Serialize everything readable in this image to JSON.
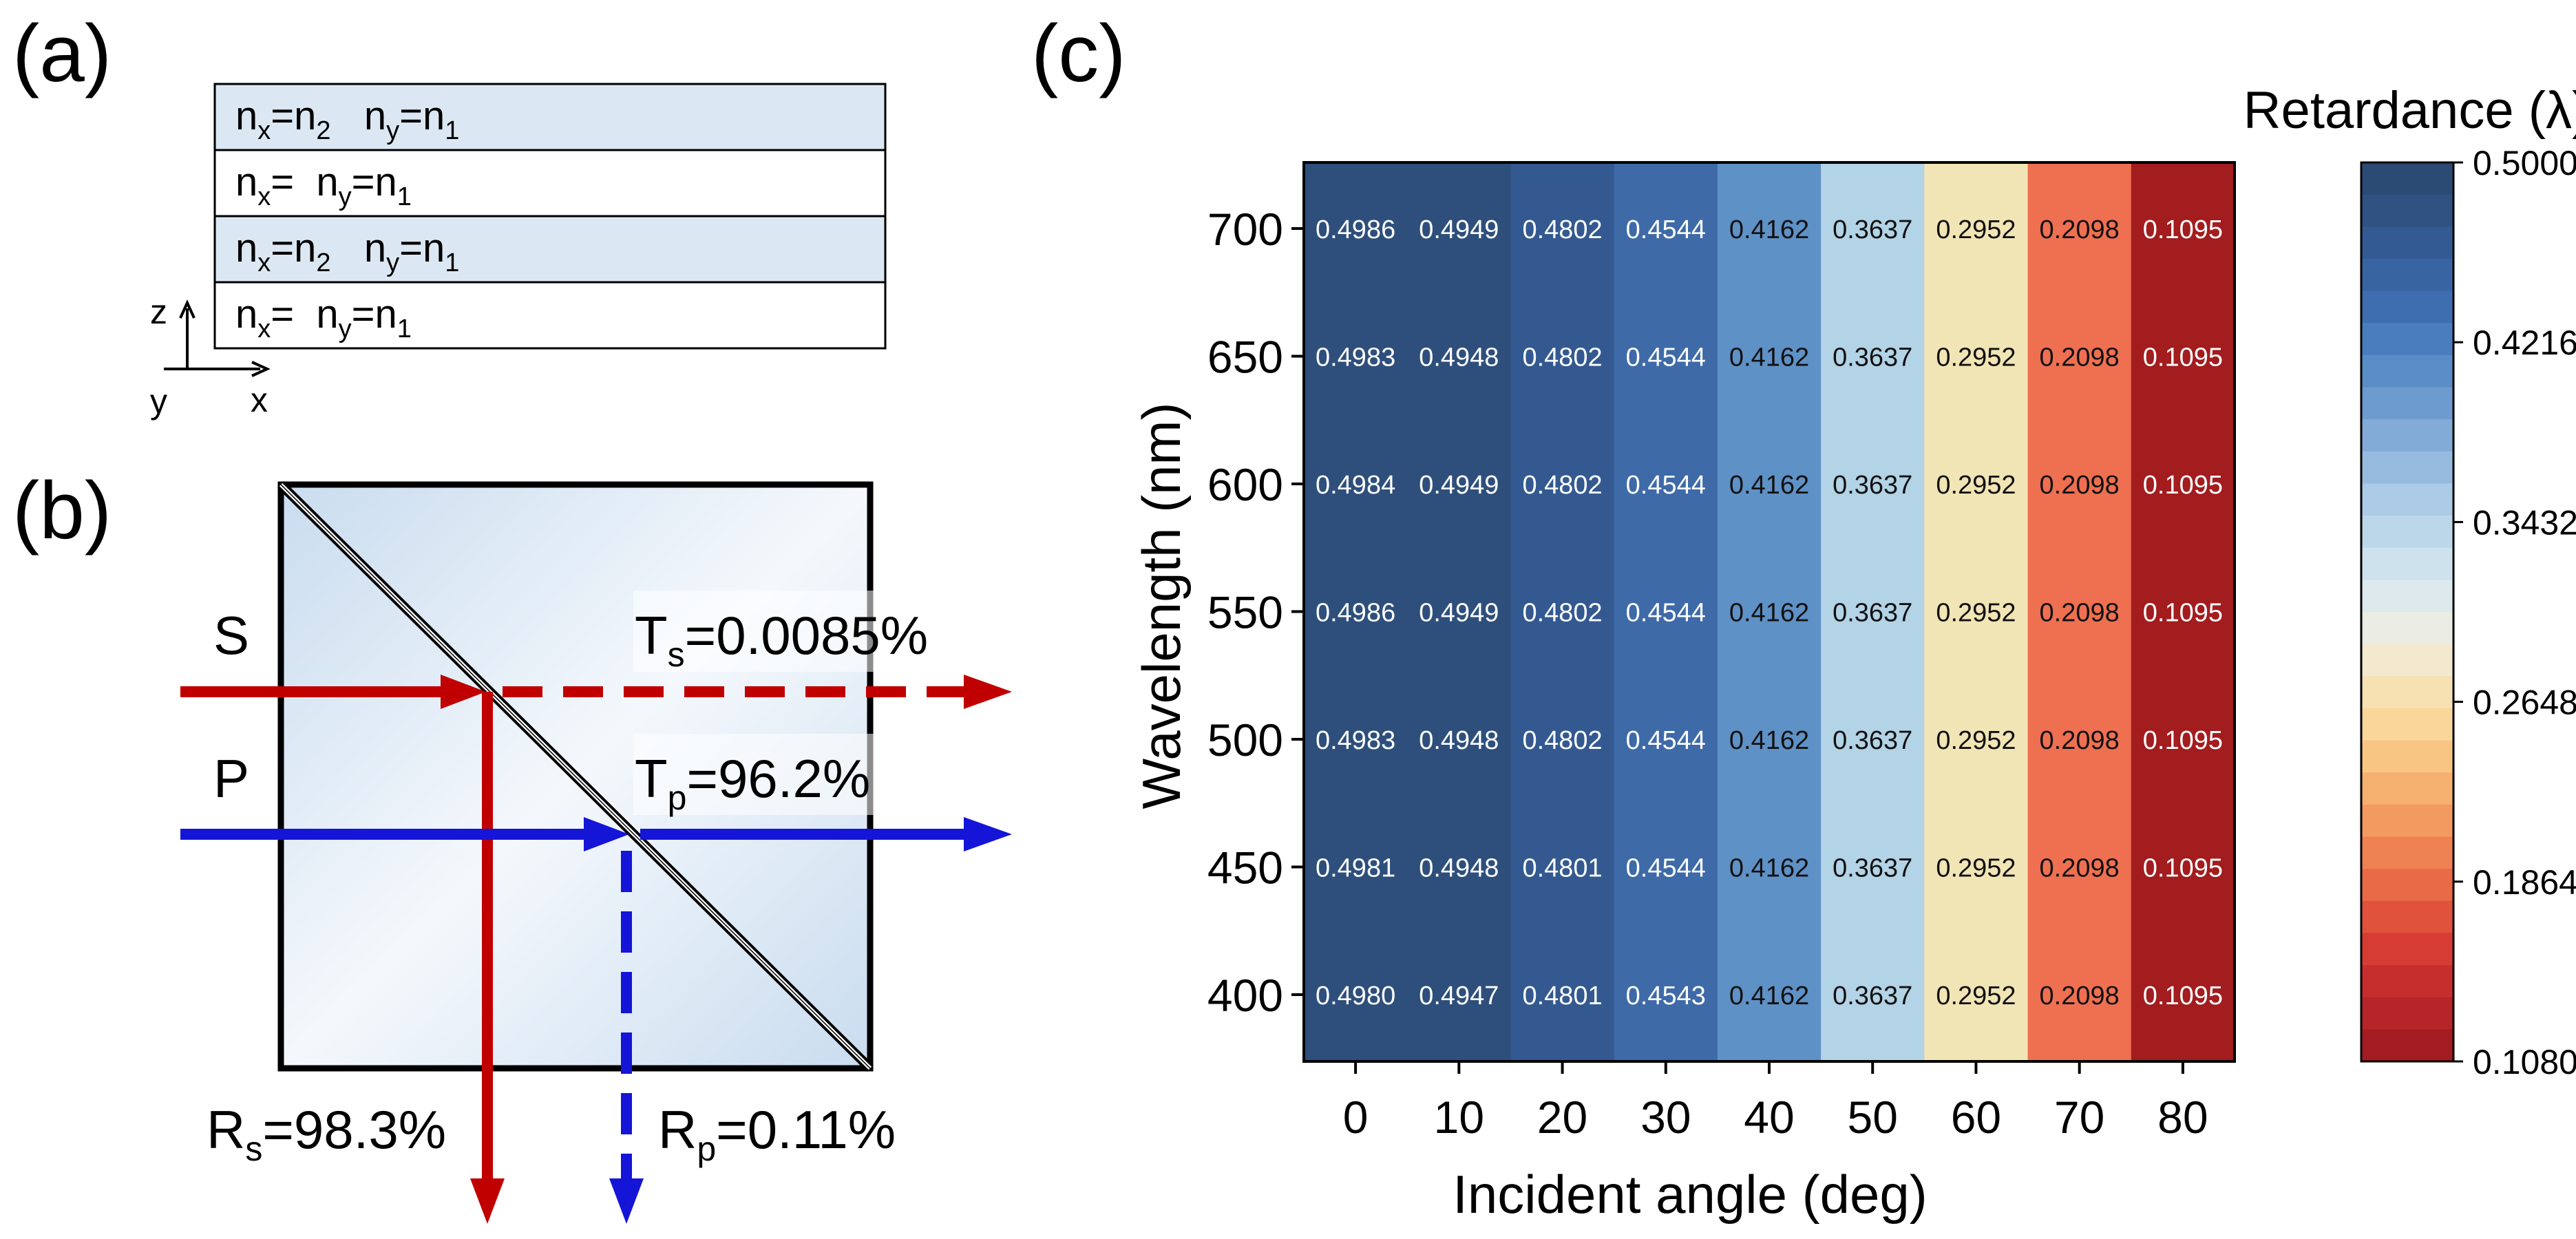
{
  "colors": {
    "s_beam": "#c00000",
    "p_beam": "#1515d8",
    "layer_fill": "#dbe8f4",
    "heat_dark_text": "#111111",
    "heat_light_text": "#ffffff"
  },
  "panel_a": {
    "label": "(a)",
    "layers": [
      {
        "text": [
          "n",
          "x",
          "=n",
          "2",
          "   n",
          "y",
          "=n",
          "1"
        ],
        "shaded": true
      },
      {
        "text": [
          "n",
          "x",
          "=  n",
          "y",
          "=n",
          "1"
        ],
        "shaded": false
      },
      {
        "text": [
          "n",
          "x",
          "=n",
          "2",
          "   n",
          "y",
          "=n",
          "1"
        ],
        "shaded": true
      },
      {
        "text": [
          "n",
          "x",
          "=  n",
          "y",
          "=n",
          "1"
        ],
        "shaded": false
      }
    ],
    "axes": {
      "z": "z",
      "y": "y",
      "x": "x"
    }
  },
  "panel_b": {
    "label": "(b)",
    "s_label": "S",
    "p_label": "P",
    "ts": {
      "main": "T",
      "sub": "s",
      "value": "=0.0085%"
    },
    "tp": {
      "main": "T",
      "sub": "p",
      "value": "=96.2%"
    },
    "rs": {
      "main": "R",
      "sub": "s",
      "value": "=98.3%"
    },
    "rp": {
      "main": "R",
      "sub": "p",
      "value": "=0.11%"
    }
  },
  "panel_c": {
    "label": "(c)",
    "chart_data": {
      "type": "heatmap",
      "xlabel": "Incident angle (deg)",
      "ylabel": "Wavelength (nm)",
      "x": [
        0,
        10,
        20,
        30,
        40,
        50,
        60,
        70,
        80
      ],
      "x_ticks": [
        "0",
        "10",
        "20",
        "30",
        "40",
        "50",
        "60",
        "70",
        "80"
      ],
      "y": [
        700,
        650,
        600,
        550,
        500,
        450,
        400
      ],
      "y_ticks": [
        "700",
        "650",
        "600",
        "550",
        "500",
        "450",
        "400"
      ],
      "values": [
        [
          "0.4986",
          "0.4949",
          "0.4802",
          "0.4544",
          "0.4162",
          "0.3637",
          "0.2952",
          "0.2098",
          "0.1095"
        ],
        [
          "0.4983",
          "0.4948",
          "0.4802",
          "0.4544",
          "0.4162",
          "0.3637",
          "0.2952",
          "0.2098",
          "0.1095"
        ],
        [
          "0.4984",
          "0.4949",
          "0.4802",
          "0.4544",
          "0.4162",
          "0.3637",
          "0.2952",
          "0.2098",
          "0.1095"
        ],
        [
          "0.4986",
          "0.4949",
          "0.4802",
          "0.4544",
          "0.4162",
          "0.3637",
          "0.2952",
          "0.2098",
          "0.1095"
        ],
        [
          "0.4983",
          "0.4948",
          "0.4802",
          "0.4544",
          "0.4162",
          "0.3637",
          "0.2952",
          "0.2098",
          "0.1095"
        ],
        [
          "0.4981",
          "0.4948",
          "0.4801",
          "0.4544",
          "0.4162",
          "0.3637",
          "0.2952",
          "0.2098",
          "0.1095"
        ],
        [
          "0.4980",
          "0.4947",
          "0.4801",
          "0.4543",
          "0.4162",
          "0.3637",
          "0.2952",
          "0.2098",
          "0.1095"
        ]
      ],
      "column_colors": [
        "#2e4f7c",
        "#2e4f7c",
        "#335990",
        "#3e6aa8",
        "#5e91c6",
        "#b3d3e6",
        "#f2e5b5",
        "#ef7051",
        "#a31c1e"
      ],
      "dark_text_columns": [
        4,
        5,
        6,
        7
      ],
      "colorbar": {
        "title": "Retardance (λ)",
        "min": 0.108,
        "max": 0.5,
        "ticks": [
          "0.5000",
          "0.4216",
          "0.3432",
          "0.2648",
          "0.1864",
          "0.1080"
        ],
        "colors_top_to_bottom": [
          "#2b4a74",
          "#2f5283",
          "#335a92",
          "#3864a2",
          "#3e6eb0",
          "#4a7dbd",
          "#5a8cc6",
          "#6d9bcf",
          "#82abd7",
          "#97bbdf",
          "#abcbe6",
          "#bcd7ea",
          "#cde2ec",
          "#dde9ec",
          "#ebece4",
          "#f3e9cf",
          "#f7e1b3",
          "#f9d69a",
          "#f8c583",
          "#f6b06f",
          "#f39a60",
          "#ef8253",
          "#e96a47",
          "#e1523c",
          "#d63c34",
          "#c62e2e",
          "#b62527",
          "#a31c22"
        ]
      }
    }
  }
}
